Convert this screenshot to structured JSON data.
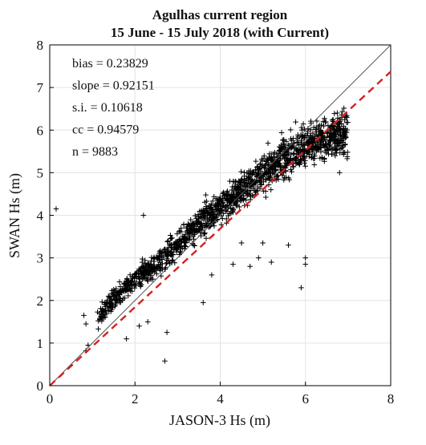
{
  "chart_data": {
    "type": "scatter",
    "title": "Agulhas current region",
    "subtitle": "15 June - 15 July 2018 (with Current)",
    "xlabel": "JASON-3  Hs  (m)",
    "ylabel": "SWAN  Hs  (m)",
    "xlim": [
      0,
      8
    ],
    "ylim": [
      0,
      8
    ],
    "xticks": [
      0,
      2,
      4,
      6,
      8
    ],
    "yticks": [
      0,
      1,
      2,
      3,
      4,
      5,
      6,
      7,
      8
    ],
    "grid": true,
    "marker": "+",
    "marker_color": "#000000",
    "reference_lines": [
      {
        "style": "solid",
        "color": "#555555",
        "slope": 1.0,
        "intercept": 0.0
      },
      {
        "style": "dashed",
        "color": "#d62020",
        "slope": 0.92151,
        "intercept": 0.0
      }
    ],
    "stats": [
      {
        "label": "bias",
        "value": "0.23829"
      },
      {
        "label": "slope",
        "value": "0.92151"
      },
      {
        "label": "s.i.",
        "value": "0.10618"
      },
      {
        "label": "cc",
        "value": "0.94579"
      },
      {
        "label": "n",
        "value": "9883"
      }
    ],
    "n": 9883,
    "cloud": [
      {
        "x": 1.1,
        "y": 1.55
      },
      {
        "x": 1.4,
        "y": 1.95
      },
      {
        "x": 1.7,
        "y": 2.2
      },
      {
        "x": 2.0,
        "y": 2.45
      },
      {
        "x": 2.5,
        "y": 2.85
      },
      {
        "x": 3.0,
        "y": 3.3
      },
      {
        "x": 3.5,
        "y": 3.8
      },
      {
        "x": 4.0,
        "y": 4.2
      },
      {
        "x": 4.5,
        "y": 4.6
      },
      {
        "x": 5.0,
        "y": 5.0
      },
      {
        "x": 5.5,
        "y": 5.35
      },
      {
        "x": 6.0,
        "y": 5.65
      },
      {
        "x": 6.5,
        "y": 5.8
      },
      {
        "x": 7.0,
        "y": 5.95
      }
    ],
    "outliers": [
      {
        "x": 0.15,
        "y": 4.15
      },
      {
        "x": 2.7,
        "y": 0.58
      },
      {
        "x": 3.6,
        "y": 1.95
      },
      {
        "x": 5.9,
        "y": 2.3
      },
      {
        "x": 6.0,
        "y": 3.0
      },
      {
        "x": 6.0,
        "y": 2.85
      },
      {
        "x": 5.2,
        "y": 2.9
      },
      {
        "x": 4.7,
        "y": 2.8
      },
      {
        "x": 4.5,
        "y": 3.35
      },
      {
        "x": 5.0,
        "y": 3.35
      },
      {
        "x": 4.9,
        "y": 3.0
      },
      {
        "x": 2.75,
        "y": 1.25
      },
      {
        "x": 2.3,
        "y": 1.5
      },
      {
        "x": 2.1,
        "y": 1.4
      },
      {
        "x": 0.8,
        "y": 1.65
      },
      {
        "x": 0.85,
        "y": 1.45
      },
      {
        "x": 0.9,
        "y": 0.95
      },
      {
        "x": 0.85,
        "y": 0.82
      },
      {
        "x": 1.8,
        "y": 1.1
      },
      {
        "x": 2.2,
        "y": 4.0
      },
      {
        "x": 3.8,
        "y": 2.6
      },
      {
        "x": 4.3,
        "y": 2.85
      },
      {
        "x": 5.6,
        "y": 3.3
      },
      {
        "x": 6.8,
        "y": 5.0
      }
    ]
  }
}
